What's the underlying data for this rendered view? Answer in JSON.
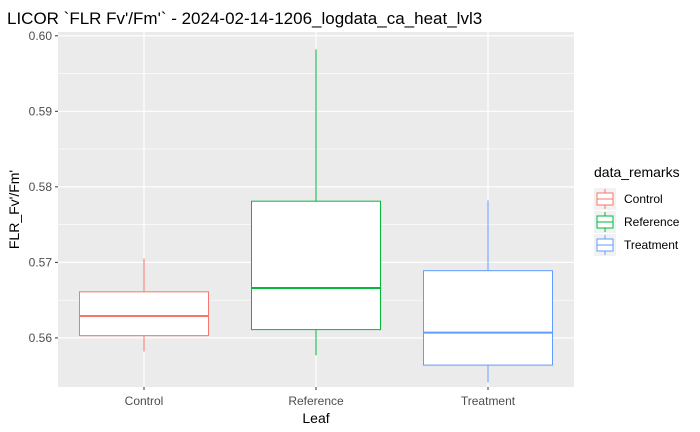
{
  "chart_data": {
    "type": "boxplot",
    "title": "LICOR `FLR Fv'/Fm'` - 2024-02-14-1206_logdata_ca_heat_lvl3",
    "xlabel": "Leaf",
    "ylabel": "FLR_Fv'/Fm'",
    "categories": [
      "Control",
      "Reference",
      "Treatment"
    ],
    "ylim": [
      0.5535,
      0.6005
    ],
    "y_ticks": [
      0.56,
      0.57,
      0.58,
      0.59,
      0.6
    ],
    "y_tick_labels": [
      "0.56",
      "0.57",
      "0.58",
      "0.59",
      "0.60"
    ],
    "legend": {
      "title": "data_remarks",
      "position": "right",
      "entries": [
        "Control",
        "Reference",
        "Treatment"
      ]
    },
    "series": [
      {
        "category": "Control",
        "color": "#F8766D",
        "min": 0.5582,
        "q1": 0.5603,
        "median": 0.5629,
        "q3": 0.5661,
        "max": 0.5705
      },
      {
        "category": "Reference",
        "color": "#00BA38",
        "min": 0.5577,
        "q1": 0.5611,
        "median": 0.5666,
        "q3": 0.5781,
        "max": 0.5982
      },
      {
        "category": "Treatment",
        "color": "#619CFF",
        "min": 0.5541,
        "q1": 0.5564,
        "median": 0.5607,
        "q3": 0.5689,
        "max": 0.5782
      }
    ],
    "grid": true,
    "panel_background": "#EBEBEB"
  }
}
